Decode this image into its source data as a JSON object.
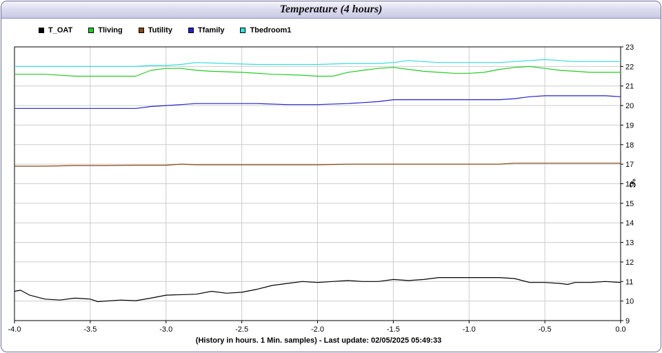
{
  "chart_data": {
    "type": "line",
    "title": "Temperature (4 hours)",
    "xlabel": "(History in hours. 1 Min. samples) - Last update: 02/05/2025 05:49:33",
    "ylabel": "°C",
    "xlim": [
      -4.0,
      0.0
    ],
    "ylim": [
      9,
      23
    ],
    "grid": true,
    "legend_position": "top-left",
    "x_ticks": [
      "-4.0",
      "-3.5",
      "-3.0",
      "-2.5",
      "-2.0",
      "-1.5",
      "-1.0",
      "-0.5",
      "0.0"
    ],
    "y_ticks": [
      "9",
      "10",
      "11",
      "12",
      "13",
      "14",
      "15",
      "16",
      "17",
      "18",
      "19",
      "20",
      "21",
      "22",
      "23"
    ],
    "series": [
      {
        "name": "T_OAT",
        "color": "#000000",
        "points": [
          [
            -4.0,
            10.5
          ],
          [
            -3.96,
            10.55
          ],
          [
            -3.9,
            10.3
          ],
          [
            -3.8,
            10.1
          ],
          [
            -3.7,
            10.05
          ],
          [
            -3.6,
            10.15
          ],
          [
            -3.5,
            10.1
          ],
          [
            -3.45,
            9.97
          ],
          [
            -3.3,
            10.05
          ],
          [
            -3.2,
            10.02
          ],
          [
            -3.1,
            10.15
          ],
          [
            -3.0,
            10.3
          ],
          [
            -2.8,
            10.35
          ],
          [
            -2.7,
            10.5
          ],
          [
            -2.6,
            10.4
          ],
          [
            -2.5,
            10.45
          ],
          [
            -2.4,
            10.6
          ],
          [
            -2.3,
            10.8
          ],
          [
            -2.2,
            10.9
          ],
          [
            -2.1,
            11.0
          ],
          [
            -2.0,
            10.95
          ],
          [
            -1.9,
            11.0
          ],
          [
            -1.8,
            11.05
          ],
          [
            -1.7,
            11.0
          ],
          [
            -1.6,
            11.0
          ],
          [
            -1.5,
            11.1
          ],
          [
            -1.4,
            11.05
          ],
          [
            -1.3,
            11.1
          ],
          [
            -1.2,
            11.2
          ],
          [
            -1.1,
            11.2
          ],
          [
            -1.0,
            11.2
          ],
          [
            -0.9,
            11.2
          ],
          [
            -0.8,
            11.2
          ],
          [
            -0.7,
            11.15
          ],
          [
            -0.6,
            10.95
          ],
          [
            -0.5,
            10.95
          ],
          [
            -0.4,
            10.9
          ],
          [
            -0.35,
            10.85
          ],
          [
            -0.3,
            10.95
          ],
          [
            -0.2,
            10.95
          ],
          [
            -0.1,
            11.0
          ],
          [
            0.0,
            10.95
          ]
        ]
      },
      {
        "name": "Tliving",
        "color": "#22cc22",
        "points": [
          [
            -4.0,
            21.6
          ],
          [
            -3.8,
            21.6
          ],
          [
            -3.6,
            21.5
          ],
          [
            -3.4,
            21.5
          ],
          [
            -3.2,
            21.5
          ],
          [
            -3.1,
            21.8
          ],
          [
            -3.0,
            21.9
          ],
          [
            -2.9,
            21.9
          ],
          [
            -2.8,
            21.8
          ],
          [
            -2.7,
            21.75
          ],
          [
            -2.5,
            21.7
          ],
          [
            -2.3,
            21.6
          ],
          [
            -2.1,
            21.55
          ],
          [
            -2.0,
            21.5
          ],
          [
            -1.9,
            21.5
          ],
          [
            -1.8,
            21.7
          ],
          [
            -1.7,
            21.8
          ],
          [
            -1.6,
            21.9
          ],
          [
            -1.5,
            21.95
          ],
          [
            -1.4,
            21.85
          ],
          [
            -1.3,
            21.75
          ],
          [
            -1.2,
            21.7
          ],
          [
            -1.1,
            21.65
          ],
          [
            -1.0,
            21.65
          ],
          [
            -0.9,
            21.7
          ],
          [
            -0.8,
            21.85
          ],
          [
            -0.7,
            21.95
          ],
          [
            -0.6,
            22.0
          ],
          [
            -0.5,
            21.9
          ],
          [
            -0.4,
            21.8
          ],
          [
            -0.3,
            21.75
          ],
          [
            -0.2,
            21.7
          ],
          [
            -0.1,
            21.7
          ],
          [
            0.0,
            21.7
          ]
        ]
      },
      {
        "name": "Tutility",
        "color": "#8b4513",
        "points": [
          [
            -4.0,
            16.9
          ],
          [
            -3.8,
            16.9
          ],
          [
            -3.6,
            16.93
          ],
          [
            -3.4,
            16.93
          ],
          [
            -3.2,
            16.95
          ],
          [
            -3.0,
            16.95
          ],
          [
            -2.9,
            17.0
          ],
          [
            -2.8,
            16.97
          ],
          [
            -2.6,
            16.97
          ],
          [
            -2.4,
            16.97
          ],
          [
            -2.2,
            16.97
          ],
          [
            -2.0,
            16.97
          ],
          [
            -1.8,
            17.0
          ],
          [
            -1.6,
            17.0
          ],
          [
            -1.4,
            17.0
          ],
          [
            -1.2,
            17.0
          ],
          [
            -1.0,
            17.0
          ],
          [
            -0.8,
            17.0
          ],
          [
            -0.7,
            17.05
          ],
          [
            -0.5,
            17.05
          ],
          [
            -0.3,
            17.05
          ],
          [
            -0.1,
            17.05
          ],
          [
            0.0,
            17.05
          ]
        ]
      },
      {
        "name": "Tfamily",
        "color": "#2222cc",
        "points": [
          [
            -4.0,
            19.85
          ],
          [
            -3.8,
            19.85
          ],
          [
            -3.6,
            19.85
          ],
          [
            -3.4,
            19.85
          ],
          [
            -3.2,
            19.85
          ],
          [
            -3.1,
            19.95
          ],
          [
            -3.0,
            20.0
          ],
          [
            -2.9,
            20.05
          ],
          [
            -2.8,
            20.1
          ],
          [
            -2.6,
            20.1
          ],
          [
            -2.4,
            20.1
          ],
          [
            -2.2,
            20.05
          ],
          [
            -2.0,
            20.05
          ],
          [
            -1.8,
            20.1
          ],
          [
            -1.7,
            20.15
          ],
          [
            -1.6,
            20.2
          ],
          [
            -1.5,
            20.3
          ],
          [
            -1.4,
            20.3
          ],
          [
            -1.2,
            20.3
          ],
          [
            -1.0,
            20.3
          ],
          [
            -0.8,
            20.3
          ],
          [
            -0.7,
            20.35
          ],
          [
            -0.6,
            20.45
          ],
          [
            -0.5,
            20.5
          ],
          [
            -0.4,
            20.5
          ],
          [
            -0.2,
            20.5
          ],
          [
            -0.1,
            20.5
          ],
          [
            0.0,
            20.45
          ]
        ]
      },
      {
        "name": "Tbedroom1",
        "color": "#33dddd",
        "points": [
          [
            -4.0,
            22.0
          ],
          [
            -3.8,
            22.0
          ],
          [
            -3.6,
            22.0
          ],
          [
            -3.4,
            22.0
          ],
          [
            -3.2,
            22.0
          ],
          [
            -3.1,
            22.05
          ],
          [
            -3.0,
            22.05
          ],
          [
            -2.9,
            22.1
          ],
          [
            -2.8,
            22.2
          ],
          [
            -2.6,
            22.15
          ],
          [
            -2.4,
            22.1
          ],
          [
            -2.2,
            22.1
          ],
          [
            -2.0,
            22.1
          ],
          [
            -1.8,
            22.15
          ],
          [
            -1.6,
            22.15
          ],
          [
            -1.5,
            22.2
          ],
          [
            -1.4,
            22.3
          ],
          [
            -1.3,
            22.25
          ],
          [
            -1.2,
            22.2
          ],
          [
            -1.0,
            22.2
          ],
          [
            -0.8,
            22.2
          ],
          [
            -0.7,
            22.25
          ],
          [
            -0.6,
            22.3
          ],
          [
            -0.5,
            22.35
          ],
          [
            -0.4,
            22.3
          ],
          [
            -0.3,
            22.25
          ],
          [
            -0.2,
            22.25
          ],
          [
            -0.1,
            22.25
          ],
          [
            0.0,
            22.25
          ]
        ]
      }
    ]
  }
}
